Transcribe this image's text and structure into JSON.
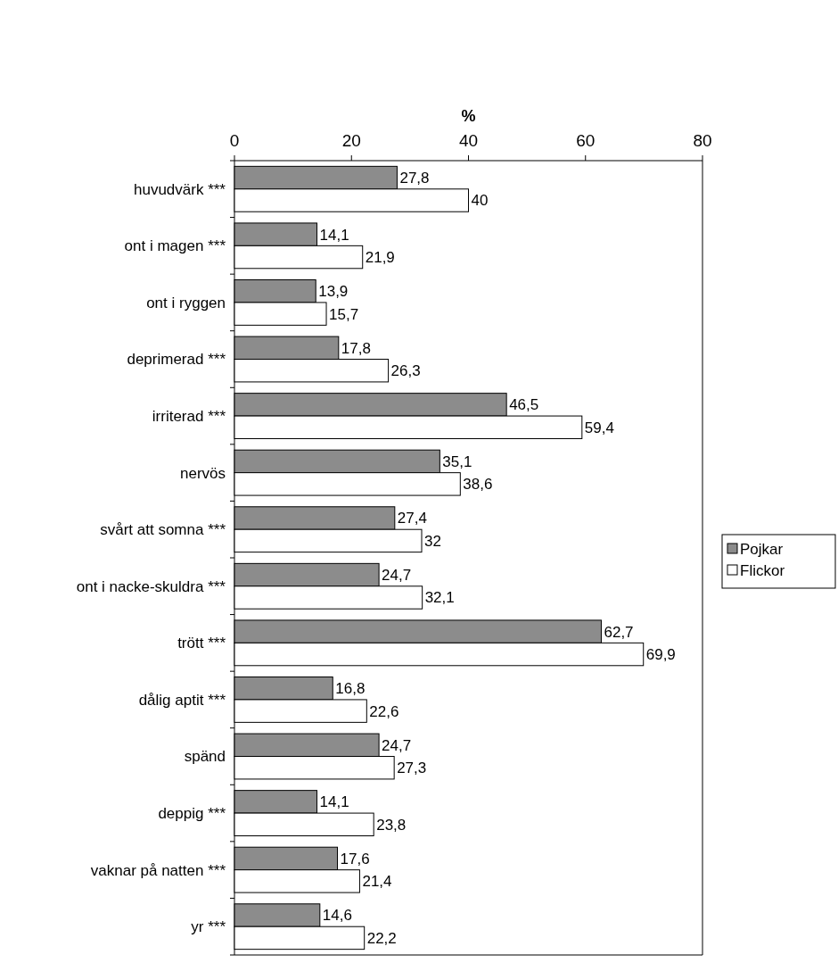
{
  "chart_data": {
    "type": "bar",
    "orientation": "horizontal",
    "xlabel": "%",
    "categories": [
      "huvudvärk ***",
      "ont i magen ***",
      "ont i ryggen",
      "deprimerad ***",
      "irriterad ***",
      "nervös",
      "svårt att somna ***",
      "ont i nacke-skuldra ***",
      "trött ***",
      "dålig aptit ***",
      "spänd",
      "deppig ***",
      "vaknar på natten ***",
      "yr ***"
    ],
    "series": [
      {
        "name": "Pojkar",
        "color": "#8c8c8c",
        "values": [
          27.8,
          14.1,
          13.9,
          17.8,
          46.5,
          35.1,
          27.4,
          24.7,
          62.7,
          16.8,
          24.7,
          14.1,
          17.6,
          14.6
        ],
        "value_labels": [
          "27,8",
          "14,1",
          "13,9",
          "17,8",
          "46,5",
          "35,1",
          "27,4",
          "24,7",
          "62,7",
          "16,8",
          "24,7",
          "14,1",
          "17,6",
          "14,6"
        ]
      },
      {
        "name": "Flickor",
        "color": "#ffffff",
        "values": [
          40,
          21.9,
          15.7,
          26.3,
          59.4,
          38.6,
          32,
          32.1,
          69.9,
          22.6,
          27.3,
          23.8,
          21.4,
          22.2
        ],
        "value_labels": [
          "40",
          "21,9",
          "15,7",
          "26,3",
          "59,4",
          "38,6",
          "32",
          "32,1",
          "69,9",
          "22,6",
          "27,3",
          "23,8",
          "21,4",
          "22,2"
        ]
      }
    ],
    "xlim": [
      0,
      80
    ],
    "xticks": [
      0,
      20,
      40,
      60,
      80
    ],
    "grid": false,
    "legend": "right"
  }
}
